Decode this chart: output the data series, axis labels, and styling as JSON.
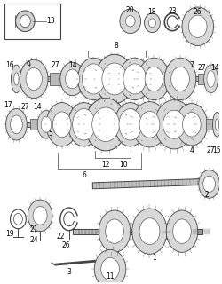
{
  "bg_color": "#ffffff",
  "line_color": "#444444",
  "gear_fill": "#d8d8d8",
  "shaft_fill": "#c8c8c8",
  "fig_w": 2.5,
  "fig_h": 3.2,
  "dpi": 100
}
